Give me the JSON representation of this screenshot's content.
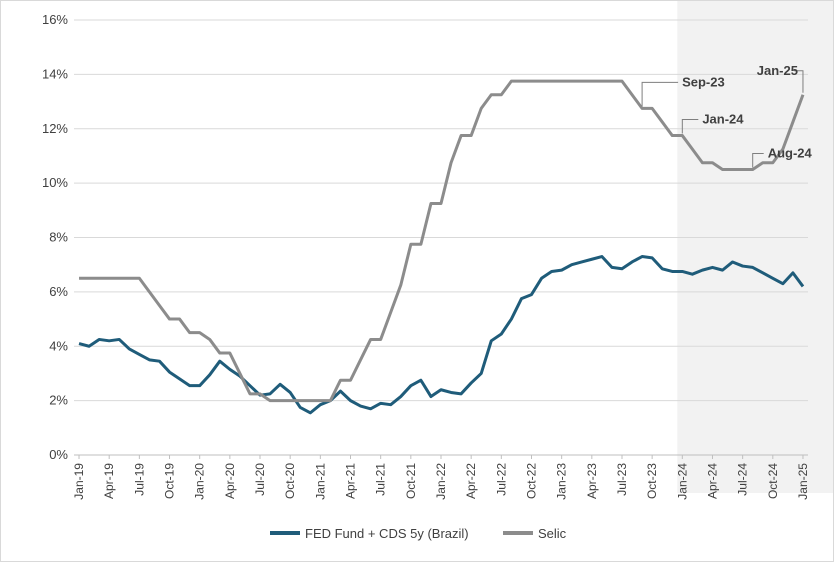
{
  "chart_data": {
    "type": "line",
    "ylim": [
      0,
      16
    ],
    "ytick_labels": [
      "0%",
      "2%",
      "4%",
      "6%",
      "8%",
      "10%",
      "12%",
      "14%",
      "16%"
    ],
    "x_labels": [
      "Jan-19",
      "Feb-19",
      "Mar-19",
      "Apr-19",
      "May-19",
      "Jun-19",
      "Jul-19",
      "Aug-19",
      "Sep-19",
      "Oct-19",
      "Nov-19",
      "Dec-19",
      "Jan-20",
      "Feb-20",
      "Mar-20",
      "Apr-20",
      "May-20",
      "Jun-20",
      "Jul-20",
      "Aug-20",
      "Sep-20",
      "Oct-20",
      "Nov-20",
      "Dec-20",
      "Jan-21",
      "Feb-21",
      "Mar-21",
      "Apr-21",
      "May-21",
      "Jun-21",
      "Jul-21",
      "Aug-21",
      "Sep-21",
      "Oct-21",
      "Nov-21",
      "Dec-21",
      "Jan-22",
      "Feb-22",
      "Mar-22",
      "Apr-22",
      "May-22",
      "Jun-22",
      "Jul-22",
      "Aug-22",
      "Sep-22",
      "Oct-22",
      "Nov-22",
      "Dec-22",
      "Jan-23",
      "Feb-23",
      "Mar-23",
      "Apr-23",
      "May-23",
      "Jun-23",
      "Jul-23",
      "Aug-23",
      "Sep-23",
      "Oct-23",
      "Nov-23",
      "Dec-23",
      "Jan-24",
      "Feb-24",
      "Mar-24",
      "Apr-24",
      "May-24",
      "Jun-24",
      "Jul-24",
      "Aug-24",
      "Sep-24",
      "Oct-24",
      "Nov-24",
      "Dec-24",
      "Jan-25"
    ],
    "xtick_labels": [
      "Jan-19",
      "Apr-19",
      "Jul-19",
      "Oct-19",
      "Jan-20",
      "Apr-20",
      "Jul-20",
      "Oct-20",
      "Jan-21",
      "Apr-21",
      "Jul-21",
      "Oct-21",
      "Jan-22",
      "Apr-22",
      "Jul-22",
      "Oct-22",
      "Jan-23",
      "Apr-23",
      "Jul-23",
      "Oct-23",
      "Jan-24",
      "Apr-24",
      "Jul-24",
      "Oct-24",
      "Jan-25"
    ],
    "grid": true,
    "legend_position": "bottom",
    "shaded_region": {
      "from": "Jan-24",
      "to": "Jan-25",
      "color": "#f2f2f2"
    },
    "series": [
      {
        "name": "FED Fund + CDS 5y (Brazil)",
        "color": "#1f5c7a",
        "values": [
          4.1,
          4.0,
          4.25,
          4.2,
          4.25,
          3.9,
          3.7,
          3.5,
          3.45,
          3.05,
          2.8,
          2.55,
          2.55,
          2.95,
          3.45,
          3.15,
          2.9,
          2.55,
          2.2,
          2.25,
          2.6,
          2.3,
          1.75,
          1.55,
          1.85,
          2.0,
          2.35,
          2.0,
          1.8,
          1.7,
          1.9,
          1.85,
          2.15,
          2.55,
          2.75,
          2.15,
          2.4,
          2.3,
          2.25,
          2.65,
          3.0,
          4.2,
          4.45,
          5.0,
          5.75,
          5.9,
          6.5,
          6.75,
          6.8,
          7.0,
          7.1,
          7.2,
          7.3,
          6.9,
          6.85,
          7.1,
          7.3,
          7.25,
          6.85,
          6.75,
          6.75,
          6.65,
          6.8,
          6.9,
          6.8,
          7.1,
          6.95,
          6.9,
          6.7,
          6.5,
          6.3,
          6.7,
          6.2
        ]
      },
      {
        "name": "Selic",
        "color": "#8c8c8c",
        "values": [
          6.5,
          6.5,
          6.5,
          6.5,
          6.5,
          6.5,
          6.5,
          6.0,
          5.5,
          5.0,
          5.0,
          4.5,
          4.5,
          4.25,
          3.75,
          3.75,
          3.0,
          2.25,
          2.25,
          2.0,
          2.0,
          2.0,
          2.0,
          2.0,
          2.0,
          2.0,
          2.75,
          2.75,
          3.5,
          4.25,
          4.25,
          5.25,
          6.25,
          7.75,
          7.75,
          9.25,
          9.25,
          10.75,
          11.75,
          11.75,
          12.75,
          13.25,
          13.25,
          13.75,
          13.75,
          13.75,
          13.75,
          13.75,
          13.75,
          13.75,
          13.75,
          13.75,
          13.75,
          13.75,
          13.75,
          13.25,
          12.75,
          12.75,
          12.25,
          11.75,
          11.75,
          11.25,
          10.75,
          10.75,
          10.5,
          10.5,
          10.5,
          10.5,
          10.75,
          10.75,
          11.25,
          12.25,
          13.25
        ]
      }
    ],
    "annotations": [
      {
        "text": "Sep-23",
        "index": 56,
        "series": 1
      },
      {
        "text": "Jan-24",
        "index": 60,
        "series": 1
      },
      {
        "text": "Aug-24",
        "index": 67,
        "series": 1
      },
      {
        "text": "Jan-25",
        "index": 72,
        "series": 1
      }
    ]
  }
}
